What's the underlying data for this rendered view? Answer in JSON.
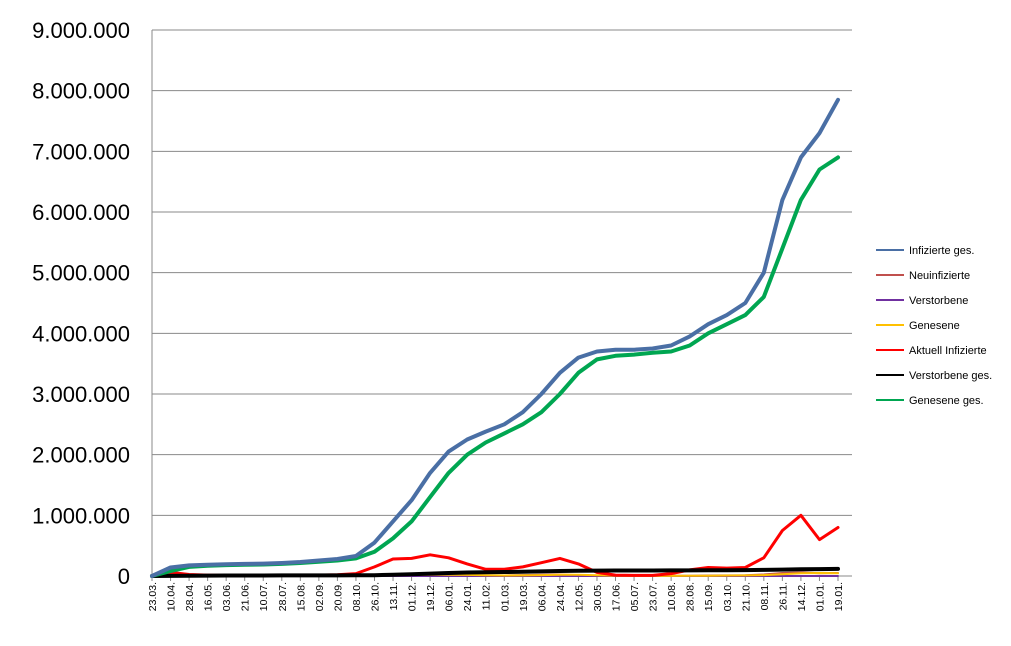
{
  "chart_data": {
    "type": "line",
    "title": "",
    "xlabel": "",
    "ylabel": "",
    "ylim": [
      0,
      9000000
    ],
    "yticks": [
      0,
      1000000,
      2000000,
      3000000,
      4000000,
      5000000,
      6000000,
      7000000,
      8000000,
      9000000
    ],
    "ytick_labels": [
      "0",
      "1.000.000",
      "2.000.000",
      "3.000.000",
      "4.000.000",
      "5.000.000",
      "6.000.000",
      "7.000.000",
      "8.000.000",
      "9.000.000"
    ],
    "grid": true,
    "legend_position": "right",
    "x_labels": [
      "23.03.",
      "10.04.",
      "28.04.",
      "16.05.",
      "03.06.",
      "21.06.",
      "10.07.",
      "28.07.",
      "15.08.",
      "02.09.",
      "20.09.",
      "08.10.",
      "26.10.",
      "13.11.",
      "01.12.",
      "19.12.",
      "06.01.",
      "24.01.",
      "11.02.",
      "01.03.",
      "19.03.",
      "06.04.",
      "24.04.",
      "12.05.",
      "30.05.",
      "17.06.",
      "05.07.",
      "23.07.",
      "10.08.",
      "28.08.",
      "15.09.",
      "03.10.",
      "21.10.",
      "08.11.",
      "26.11.",
      "14.12.",
      "01.01.",
      "19.01."
    ],
    "series": [
      {
        "name": "Infizierte ges.",
        "color": "#4a6fa5",
        "values": [
          0,
          140000,
          175000,
          185000,
          195000,
          200000,
          205000,
          215000,
          230000,
          255000,
          280000,
          330000,
          550000,
          900000,
          1250000,
          1700000,
          2050000,
          2250000,
          2380000,
          2500000,
          2700000,
          3000000,
          3350000,
          3600000,
          3700000,
          3730000,
          3730000,
          3750000,
          3800000,
          3950000,
          4150000,
          4300000,
          4500000,
          5000000,
          6200000,
          6900000,
          7300000,
          7850000
        ]
      },
      {
        "name": "Neuinfizierte",
        "color": "#c0504d",
        "values": [
          0,
          1000,
          800,
          500,
          400,
          400,
          500,
          700,
          1000,
          1500,
          2500,
          5000,
          15000,
          20000,
          22000,
          25000,
          20000,
          12000,
          8000,
          9000,
          15000,
          22000,
          25000,
          15000,
          5000,
          2000,
          1500,
          2000,
          3000,
          5000,
          8000,
          10000,
          12000,
          25000,
          50000,
          60000,
          45000,
          50000
        ]
      },
      {
        "name": "Verstorbene",
        "color": "#7030a0",
        "values": [
          0,
          50,
          40,
          30,
          20,
          15,
          10,
          10,
          10,
          15,
          20,
          50,
          100,
          200,
          300,
          400,
          400,
          300,
          200,
          150,
          150,
          200,
          250,
          200,
          100,
          50,
          30,
          20,
          20,
          30,
          50,
          80,
          100,
          200,
          400,
          600,
          500,
          500
        ]
      },
      {
        "name": "Genesene",
        "color": "#ffc000",
        "values": [
          0,
          3000,
          2000,
          1000,
          500,
          300,
          300,
          400,
          600,
          900,
          1500,
          3000,
          8000,
          15000,
          18000,
          20000,
          22000,
          18000,
          12000,
          8000,
          10000,
          15000,
          20000,
          20000,
          12000,
          5000,
          2000,
          1500,
          2000,
          3000,
          5000,
          8000,
          10000,
          15000,
          30000,
          45000,
          50000,
          45000
        ]
      },
      {
        "name": "Aktuell Infizierte",
        "color": "#ff0000",
        "values": [
          0,
          60000,
          25000,
          15000,
          10000,
          8000,
          8000,
          9000,
          12000,
          15000,
          20000,
          40000,
          150000,
          280000,
          290000,
          350000,
          300000,
          200000,
          110000,
          110000,
          150000,
          220000,
          290000,
          200000,
          60000,
          15000,
          10000,
          10000,
          40000,
          100000,
          140000,
          130000,
          140000,
          300000,
          750000,
          1000000,
          600000,
          800000
        ]
      },
      {
        "name": "Verstorbene ges.",
        "color": "#000000",
        "values": [
          0,
          1000,
          5000,
          7000,
          8000,
          8500,
          9000,
          9200,
          9300,
          9500,
          10000,
          11000,
          14000,
          20000,
          30000,
          40000,
          50000,
          58000,
          63000,
          66000,
          70000,
          76000,
          82000,
          87000,
          89000,
          90000,
          90500,
          91000,
          91500,
          92500,
          94000,
          95500,
          97000,
          100000,
          105000,
          110000,
          113000,
          117000
        ]
      },
      {
        "name": "Genesene ges.",
        "color": "#00a651",
        "values": [
          0,
          80000,
          150000,
          168000,
          180000,
          185000,
          190000,
          200000,
          215000,
          235000,
          255000,
          290000,
          400000,
          620000,
          900000,
          1300000,
          1700000,
          2000000,
          2200000,
          2350000,
          2500000,
          2700000,
          3000000,
          3350000,
          3570000,
          3630000,
          3650000,
          3680000,
          3700000,
          3800000,
          4000000,
          4150000,
          4300000,
          4600000,
          5400000,
          6200000,
          6700000,
          6900000
        ]
      }
    ]
  }
}
